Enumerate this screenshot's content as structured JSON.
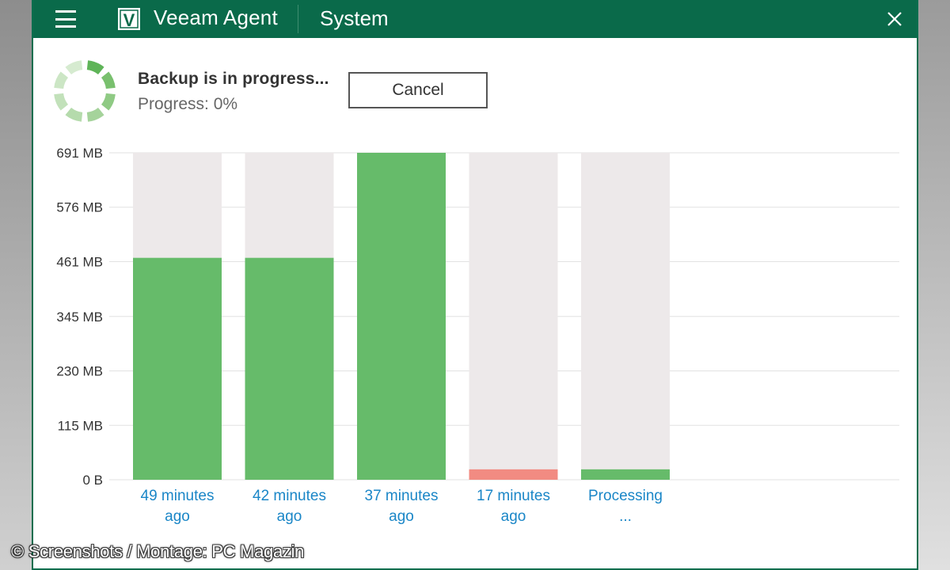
{
  "window": {
    "app_title": "Veeam Agent",
    "job_name": "System",
    "logo_letter": "V",
    "menu_icon": "hamburger-menu-icon",
    "close_icon": "close-icon"
  },
  "status": {
    "title": "Backup is in progress...",
    "progress_text": "Progress: 0%",
    "spinner_icon": "progress-spinner-icon"
  },
  "cancel_button": {
    "label": "Cancel"
  },
  "colors": {
    "titlebar": "#0a6a4a",
    "success": "#66bb6a",
    "failed": "#f28b82",
    "bar_background": "#ede9ea",
    "link": "#1a86c7"
  },
  "chart_data": {
    "type": "bar",
    "title": "",
    "xlabel": "",
    "ylabel": "",
    "unit": "MB",
    "ylim": [
      0,
      691
    ],
    "y_ticks": [
      {
        "value": 691,
        "label": "691 MB"
      },
      {
        "value": 576,
        "label": "576 MB"
      },
      {
        "value": 461,
        "label": "461 MB"
      },
      {
        "value": 345,
        "label": "345 MB"
      },
      {
        "value": 230,
        "label": "230 MB"
      },
      {
        "value": 115,
        "label": "115 MB"
      },
      {
        "value": 0,
        "label": "0 B"
      }
    ],
    "bars": [
      {
        "label_line1": "49 minutes",
        "label_line2": "ago",
        "value": 469,
        "status": "success"
      },
      {
        "label_line1": "42 minutes",
        "label_line2": "ago",
        "value": 469,
        "status": "success"
      },
      {
        "label_line1": "37 minutes",
        "label_line2": "ago",
        "value": 691,
        "status": "success"
      },
      {
        "label_line1": "17 minutes",
        "label_line2": "ago",
        "value": 22,
        "status": "failed"
      },
      {
        "label_line1": "Processing",
        "label_line2": "...",
        "value": 22,
        "status": "success"
      }
    ]
  },
  "watermark": {
    "text": "© Screenshots / Montage: PC Magazin"
  }
}
